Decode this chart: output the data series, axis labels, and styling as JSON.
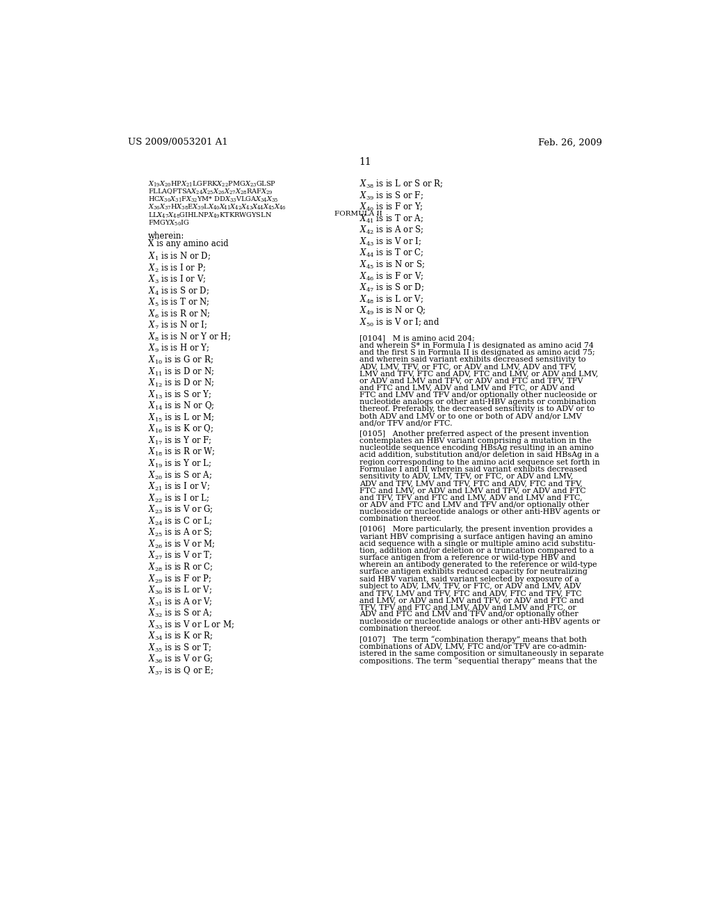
{
  "header_left": "US 2009/0053201 A1",
  "header_right": "Feb. 26, 2009",
  "page_number": "11",
  "background_color": "#ffffff",
  "text_color": "#000000",
  "formula_lines": [
    "$X_{19}X_{20}$HP$X_{21}$LGFRK$X_{22}$PMG$X_{23}$GLSP",
    "FLLAQFTSA$X_{24}X_{25}X_{26}X_{27}X_{28}$RAF$X_{29}$",
    "HC$X_{30}X_{31}$F$X_{32}$YM* DD$X_{33}$VLGA$X_{34}X_{35}$",
    "$X_{36}X_{37}$H$X_{38}$E$X_{39}$L$X_{40}X_{41}X_{42}X_{43}X_{44}X_{45}X_{46}$",
    "LL$X_{47}X_{48}$GIHLNP$X_{49}$KTKRWGYSLN",
    "FMGY$X_{50}$IG"
  ],
  "formula_label": "FORMULA II",
  "left_column_items": [
    {
      "sub": "1",
      "text": "is N or D;"
    },
    {
      "sub": "2",
      "text": "is I or P;"
    },
    {
      "sub": "3",
      "text": "is I or V;"
    },
    {
      "sub": "4",
      "text": "is S or D;"
    },
    {
      "sub": "5",
      "text": "is T or N;"
    },
    {
      "sub": "6",
      "text": "is R or N;"
    },
    {
      "sub": "7",
      "text": "is N or I;"
    },
    {
      "sub": "8",
      "text": "is N or Y or H;"
    },
    {
      "sub": "9",
      "text": "is H or Y;"
    },
    {
      "sub": "10",
      "text": "is G or R;"
    },
    {
      "sub": "11",
      "text": "is D or N;"
    },
    {
      "sub": "12",
      "text": "is D or N;"
    },
    {
      "sub": "13",
      "text": "is S or Y;"
    },
    {
      "sub": "14",
      "text": "is N or Q;"
    },
    {
      "sub": "15",
      "text": "is L or M;"
    },
    {
      "sub": "16",
      "text": "is K or Q;"
    },
    {
      "sub": "17",
      "text": "is Y or F;"
    },
    {
      "sub": "18",
      "text": "is R or W;"
    },
    {
      "sub": "19",
      "text": "is Y or L;"
    },
    {
      "sub": "20",
      "text": "is S or A;"
    },
    {
      "sub": "21",
      "text": "is I or V;"
    },
    {
      "sub": "22",
      "text": "is I or L;"
    },
    {
      "sub": "23",
      "text": "is V or G;"
    },
    {
      "sub": "24",
      "text": "is C or L;"
    },
    {
      "sub": "25",
      "text": "is A or S;"
    },
    {
      "sub": "26",
      "text": "is V or M;"
    },
    {
      "sub": "27",
      "text": "is V or T;"
    },
    {
      "sub": "28",
      "text": "is R or C;"
    },
    {
      "sub": "29",
      "text": "is F or P;"
    },
    {
      "sub": "30",
      "text": "is L or V;"
    },
    {
      "sub": "31",
      "text": "is A or V;"
    },
    {
      "sub": "32",
      "text": "is S or A;"
    },
    {
      "sub": "33",
      "text": "is V or L or M;"
    },
    {
      "sub": "34",
      "text": "is K or R;"
    },
    {
      "sub": "35",
      "text": "is S or T;"
    },
    {
      "sub": "36",
      "text": "is V or G;"
    },
    {
      "sub": "37",
      "text": "is Q or E;"
    }
  ],
  "right_column_items": [
    {
      "sub": "38",
      "text": "is L or S or R;"
    },
    {
      "sub": "39",
      "text": "is S or F;"
    },
    {
      "sub": "40",
      "text": "is F or Y;"
    },
    {
      "sub": "41",
      "text": "is T or A;"
    },
    {
      "sub": "42",
      "text": "is A or S;"
    },
    {
      "sub": "43",
      "text": "is V or I;"
    },
    {
      "sub": "44",
      "text": "is T or C;"
    },
    {
      "sub": "45",
      "text": "is N or S;"
    },
    {
      "sub": "46",
      "text": "is F or V;"
    },
    {
      "sub": "47",
      "text": "is S or D;"
    },
    {
      "sub": "48",
      "text": "is L or V;"
    },
    {
      "sub": "49",
      "text": "is N or Q;"
    },
    {
      "sub": "50",
      "text": "is V or I; and"
    }
  ],
  "paragraph_0104_lines": [
    "[0104]   M is amino acid 204;",
    "and wherein S* in Formula I is designated as amino acid 74",
    "and the first S in Formula II is designated as amino acid 75;",
    "and wherein said variant exhibits decreased sensitivity to",
    "ADV, LMV, TFV, or FTC, or ADV and LMV, ADV and TFV,",
    "LMV and TFV, FTC and ADV, FTC and LMV, or ADV and LMV,",
    "or ADV and LMV and TFV, or ADV and FTC and TFV, TFV",
    "and FTC and LMV, ADV and LMV and FTC, or ADV and",
    "FTC and LMV and TFV and/or optionally other nucleoside or",
    "nucleotide analogs or other anti-HBV agents or combination",
    "thereof. Preferably, the decreased sensitivity is to ADV or to",
    "both ADV and LMV or to one or both of ADV and/or LMV",
    "and/or TFV and/or FTC."
  ],
  "paragraph_0105_lines": [
    "[0105]   Another preferred aspect of the present invention",
    "contemplates an HBV variant comprising a mutation in the",
    "nucleotide sequence encoding HBsAg resulting in an amino",
    "acid addition, substitution and/or deletion in said HBsAg in a",
    "region corresponding to the amino acid sequence set forth in",
    "Formulae I and II wherein said variant exhibits decreased",
    "sensitivity to ADV, LMV, TFV, or FTC, or ADV and LMV,",
    "ADV and TFV, LMV and TFV, FTC and ADV, FTC and TFV,",
    "FTC and LMV, or ADV and LMV and TFV, or ADV and FTC",
    "and TFV, TFV and FTC and LMV, ADV and LMV and FTC,",
    "or ADV and FTC and LMV and TFV and/or optionally other",
    "nucleoside or nucleotide analogs or other anti-HBV agents or",
    "combination thereof."
  ],
  "paragraph_0106_lines": [
    "[0106]   More particularly, the present invention provides a",
    "variant HBV comprising a surface antigen having an amino",
    "acid sequence with a single or multiple amino acid substitu-",
    "tion, addition and/or deletion or a truncation compared to a",
    "surface antigen from a reference or wild-type HBV and",
    "wherein an antibody generated to the reference or wild-type",
    "surface antigen exhibits reduced capacity for neutralizing",
    "said HBV variant, said variant selected by exposure of a",
    "subject to ADV, LMV, TFV, or FTC, or ADV and LMV, ADV",
    "and TFV, LMV and TFV, FTC and ADV, FTC and TFV, FTC",
    "and LMV, or ADV and LMV and TFV, or ADV and FTC and",
    "TFV, TFV and FTC and LMV, ADV and LMV and FTC, or",
    "ADV and FTC and LMV and TFV and/or optionally other",
    "nucleoside or nucleotide analogs or other anti-HBV agents or",
    "combination thereof."
  ],
  "paragraph_0107_lines": [
    "[0107]   The term “combination therapy” means that both",
    "combinations of ADV, LMV, FTC and/or TFV are co-admin-",
    "istered in the same composition or simultaneously in separate",
    "compositions. The term “sequential therapy” means that the"
  ]
}
